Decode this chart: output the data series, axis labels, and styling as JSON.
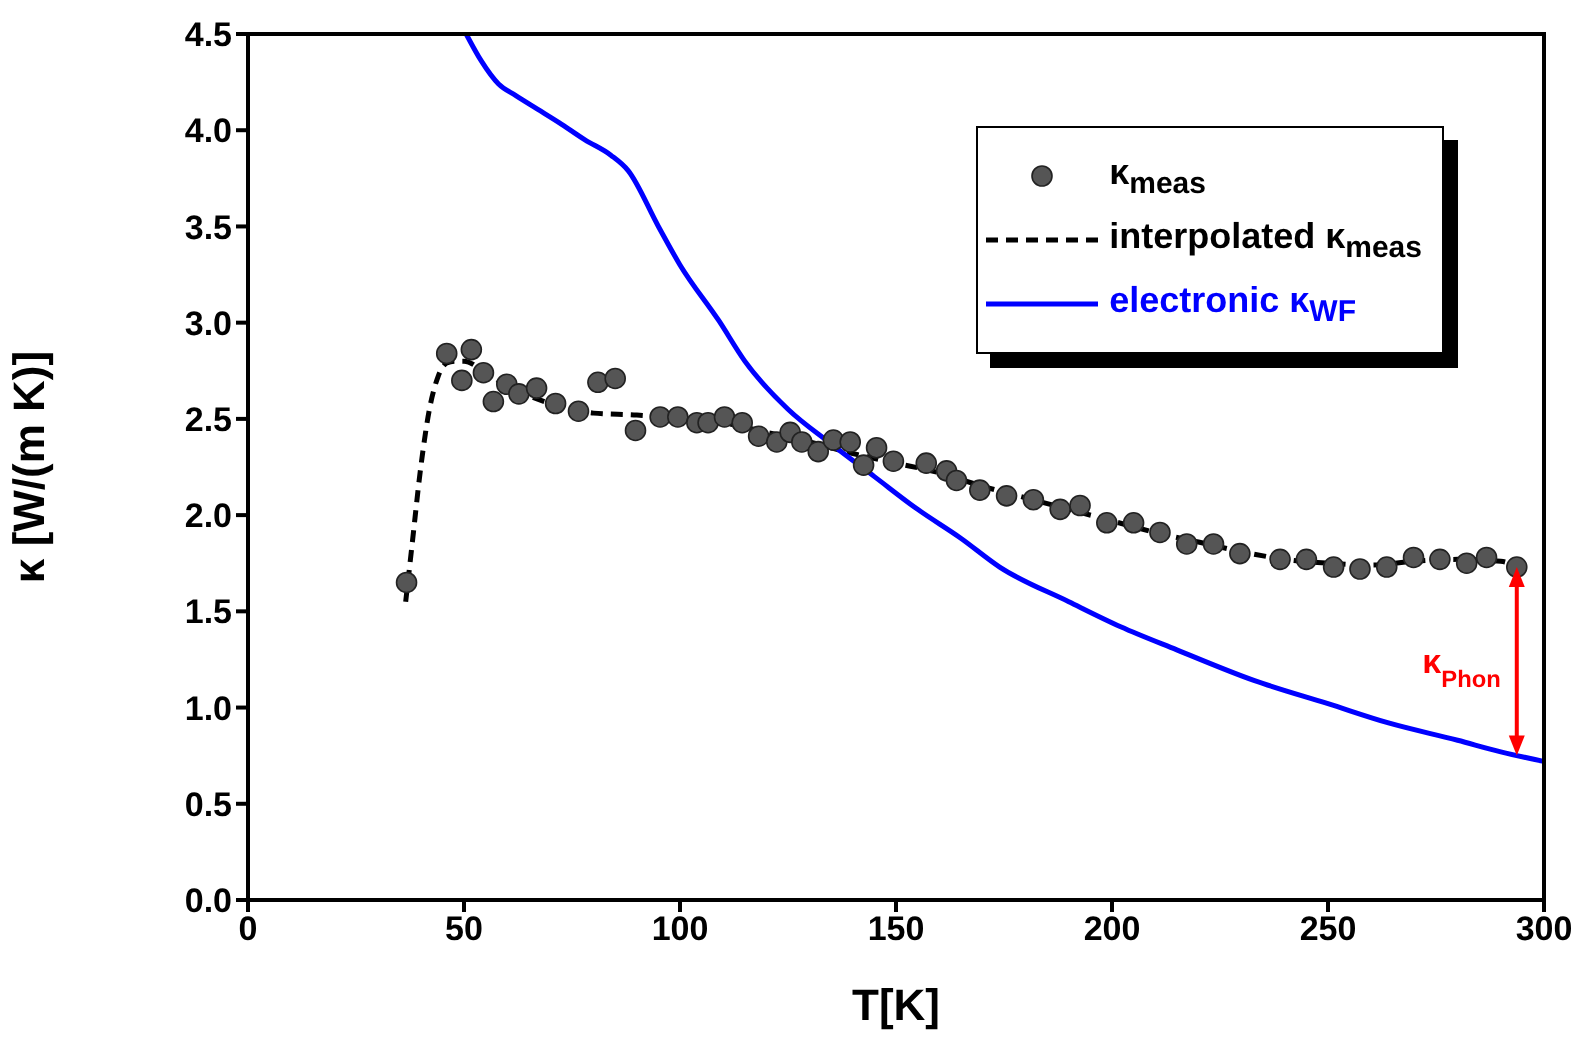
{
  "chart_data": {
    "type": "line",
    "xlabel": "T[K]",
    "ylabel": "κ [W/(m K)]",
    "xlim": [
      0,
      300
    ],
    "xticks": [
      0,
      50,
      100,
      150,
      200,
      250,
      300
    ],
    "ylim": [
      0,
      4.5
    ],
    "yticks": [
      {
        "value": 0,
        "label": "0.0"
      },
      {
        "value": 0.5,
        "label": "0.5"
      },
      {
        "value": 1,
        "label": "1.0"
      },
      {
        "value": 1.5,
        "label": "1.5"
      },
      {
        "value": 2,
        "label": "2.0"
      },
      {
        "value": 2.5,
        "label": "2.5"
      },
      {
        "value": 3,
        "label": "3.0"
      },
      {
        "value": 3.5,
        "label": "3.5"
      },
      {
        "value": 4,
        "label": "4.0"
      },
      {
        "value": 4.5,
        "label": "4.5"
      }
    ],
    "grid": false,
    "legend": "top right",
    "series": [
      {
        "name": "κ$_{meas}$",
        "type": "scatter",
        "marker": "circle",
        "color": "#555555",
        "x": [
          36.7,
          46,
          49.5,
          51.7,
          54.5,
          56.8,
          59.9,
          62.7,
          66.8,
          71.2,
          76.5,
          81,
          85,
          89.7,
          95.4,
          99.5,
          103.9,
          106.5,
          110.3,
          114.4,
          118.2,
          122.4,
          125.5,
          128.2,
          132,
          135.5,
          139.4,
          142.5,
          145.5,
          149.4,
          157,
          161.7,
          164,
          169.4,
          175.6,
          181.8,
          188,
          192.6,
          198.8,
          205,
          211.1,
          217.3,
          223.5,
          229.6,
          238.9,
          245,
          251.3,
          257.4,
          263.6,
          269.8,
          275.9,
          282.1,
          286.7,
          293.7
        ],
        "values": [
          1.65,
          2.84,
          2.7,
          2.86,
          2.74,
          2.59,
          2.68,
          2.63,
          2.66,
          2.58,
          2.54,
          2.69,
          2.71,
          2.44,
          2.51,
          2.51,
          2.48,
          2.48,
          2.51,
          2.48,
          2.41,
          2.38,
          2.43,
          2.38,
          2.33,
          2.39,
          2.38,
          2.26,
          2.35,
          2.28,
          2.27,
          2.23,
          2.18,
          2.13,
          2.1,
          2.08,
          2.03,
          2.05,
          1.96,
          1.96,
          1.91,
          1.85,
          1.85,
          1.8,
          1.77,
          1.77,
          1.73,
          1.72,
          1.73,
          1.78,
          1.77,
          1.75,
          1.78,
          1.73
        ]
      },
      {
        "name": "interpolated κ$_{meas}$",
        "line_style": "dashed",
        "marker": "none",
        "color": "#000000",
        "x": [
          36.5,
          38,
          40,
          42,
          44,
          46,
          48,
          50,
          55,
          60,
          65,
          70,
          75,
          80,
          90,
          100,
          110,
          120,
          130,
          140,
          150,
          160,
          170,
          180,
          190,
          200,
          210,
          220,
          230,
          240,
          250,
          260,
          270,
          280,
          290,
          294
        ],
        "values": [
          1.55,
          1.85,
          2.25,
          2.55,
          2.72,
          2.79,
          2.8,
          2.8,
          2.74,
          2.67,
          2.62,
          2.58,
          2.55,
          2.53,
          2.52,
          2.5,
          2.48,
          2.43,
          2.38,
          2.32,
          2.27,
          2.22,
          2.15,
          2.09,
          2.03,
          1.97,
          1.91,
          1.86,
          1.81,
          1.77,
          1.75,
          1.74,
          1.76,
          1.77,
          1.76,
          1.73
        ]
      },
      {
        "name": "electronic κ$_{WF}$",
        "line_style": "solid",
        "marker": "none",
        "color": "#0000ff",
        "x": [
          50.5,
          54,
          58,
          62,
          67,
          72,
          78,
          84,
          88,
          95,
          100,
          109,
          115,
          125,
          135,
          145,
          155,
          165,
          174,
          190,
          202,
          215,
          233,
          250,
          264,
          280,
          290,
          300
        ],
        "values": [
          4.5,
          4.36,
          4.24,
          4.18,
          4.11,
          4.04,
          3.95,
          3.87,
          3.79,
          3.5,
          3.3,
          3.01,
          2.8,
          2.55,
          2.37,
          2.2,
          2.03,
          1.88,
          1.73,
          1.55,
          1.42,
          1.3,
          1.14,
          1.02,
          0.92,
          0.83,
          0.77,
          0.72
        ]
      }
    ],
    "annotations": [
      "κ$_{Phon}$"
    ]
  }
}
